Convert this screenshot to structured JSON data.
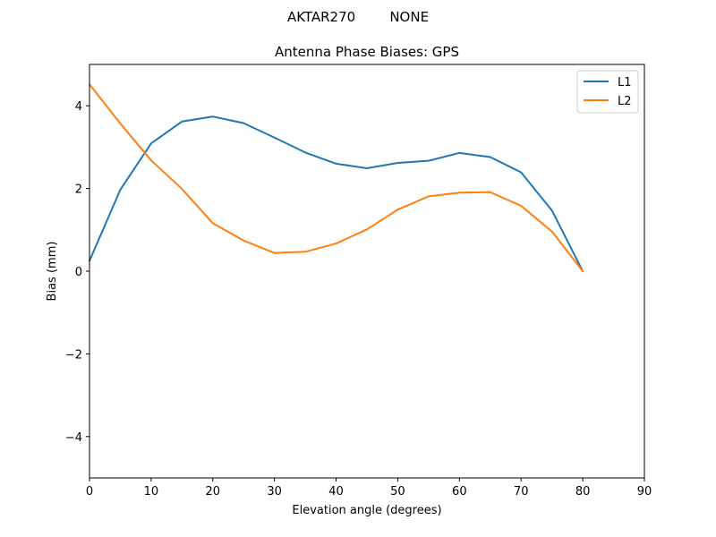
{
  "chart_data": {
    "type": "line",
    "suptitle": "AKTAR270        NONE",
    "title": "Antenna Phase Biases: GPS",
    "xlabel": "Elevation angle (degrees)",
    "ylabel": "Bias (mm)",
    "xlim": [
      0,
      90
    ],
    "ylim": [
      -5,
      5
    ],
    "xticks": [
      0,
      10,
      20,
      30,
      40,
      50,
      60,
      70,
      80,
      90
    ],
    "yticks": [
      -4,
      -2,
      0,
      2,
      4
    ],
    "ytick_labels": [
      "−4",
      "−2",
      "0",
      "2",
      "4"
    ],
    "grid": false,
    "legend_position": "top-right",
    "x": [
      0,
      5,
      10,
      15,
      20,
      25,
      30,
      35,
      40,
      45,
      50,
      55,
      60,
      65,
      70,
      75,
      80
    ],
    "series": [
      {
        "name": "L1",
        "color": "#1f77b4",
        "values": [
          0.25,
          1.97,
          3.09,
          3.62,
          3.74,
          3.58,
          3.23,
          2.87,
          2.6,
          2.49,
          2.62,
          2.67,
          2.86,
          2.76,
          2.39,
          1.47,
          0.0
        ]
      },
      {
        "name": "L2",
        "color": "#ff7f0e",
        "values": [
          4.52,
          3.57,
          2.68,
          1.99,
          1.16,
          0.74,
          0.44,
          0.47,
          0.67,
          1.01,
          1.49,
          1.81,
          1.9,
          1.91,
          1.58,
          0.96,
          0.0
        ]
      }
    ]
  }
}
